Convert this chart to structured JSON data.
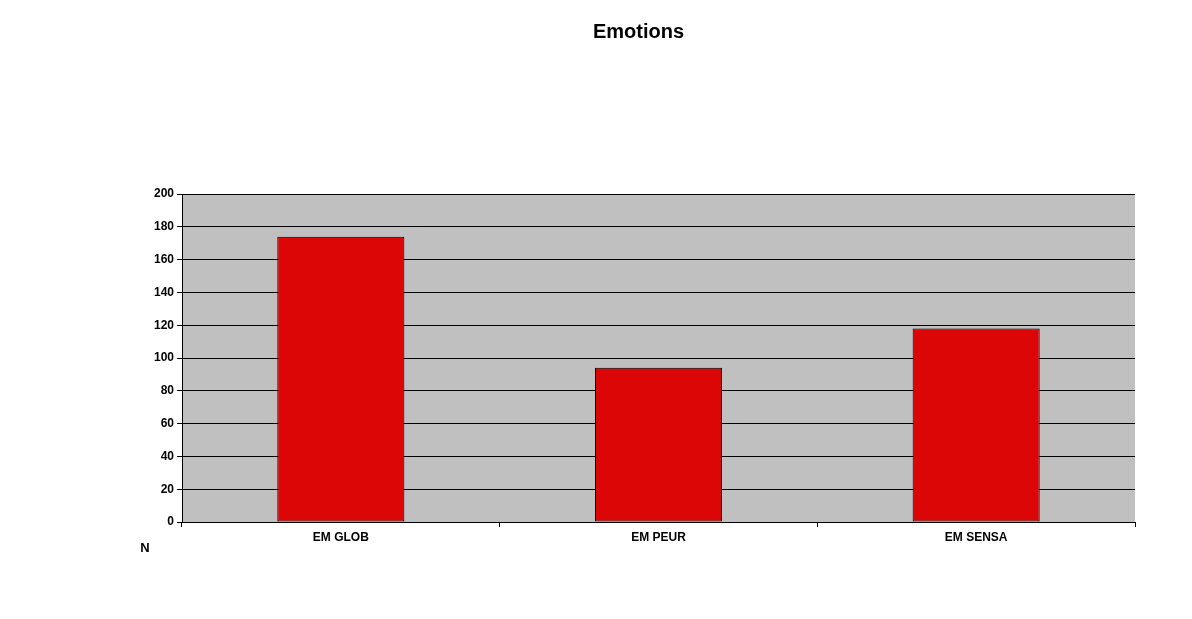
{
  "chart_data": {
    "type": "bar",
    "title": "Emotions",
    "ylabel": "N",
    "categories": [
      "EM GLOB",
      "EM PEUR",
      "EM SENSA"
    ],
    "values": [
      174,
      94,
      118
    ],
    "color": "#dd0606",
    "ylim": [
      0,
      200
    ],
    "yticks": [
      0,
      20,
      40,
      60,
      80,
      100,
      120,
      140,
      160,
      180,
      200
    ],
    "grid": "y"
  }
}
